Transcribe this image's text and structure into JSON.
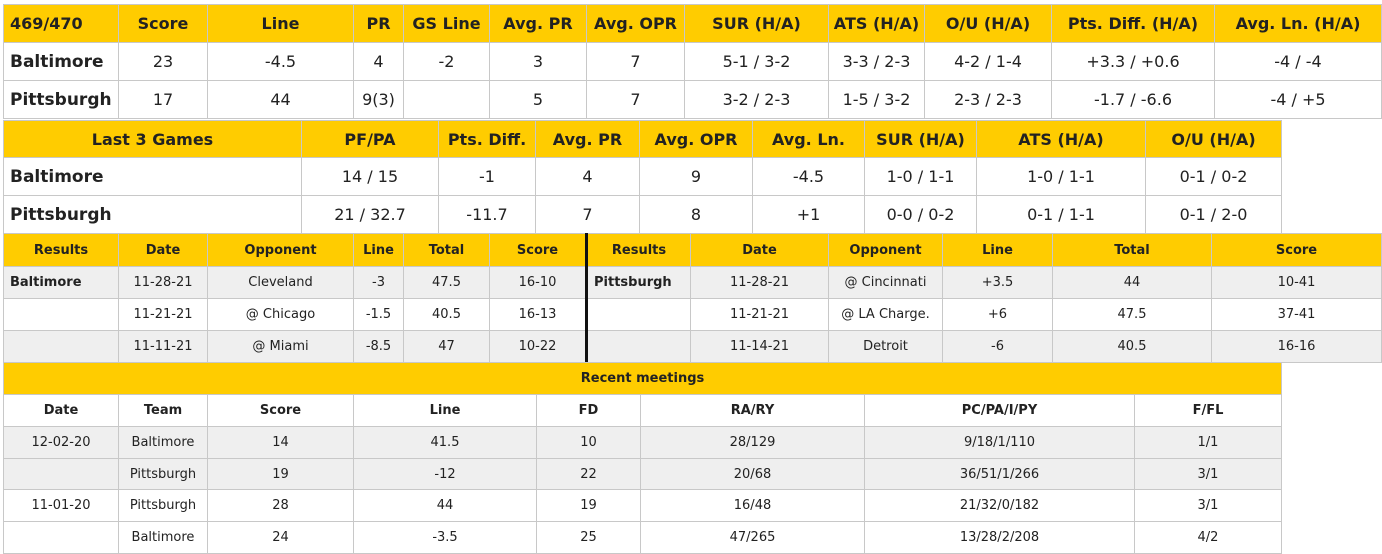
{
  "matchup": {
    "headers": [
      "469/470",
      "Score",
      "Line",
      "PR",
      "GS Line",
      "Avg. PR",
      "Avg. OPR",
      "SUR (H/A)",
      "ATS (H/A)",
      "O/U (H/A)",
      "Pts. Diff. (H/A)",
      "Avg. Ln. (H/A)"
    ],
    "rows": [
      [
        "Baltimore",
        "23",
        "-4.5",
        "4",
        "-2",
        "3",
        "7",
        "5-1 / 3-2",
        "3-3 / 2-3",
        "4-2 / 1-4",
        "+3.3 / +0.6",
        "-4 / -4"
      ],
      [
        "Pittsburgh",
        "17",
        "44",
        "9(3)",
        "",
        "5",
        "7",
        "3-2 / 2-3",
        "1-5 / 3-2",
        "2-3 / 2-3",
        "-1.7 / -6.6",
        "-4 / +5"
      ]
    ]
  },
  "last3": {
    "headers": [
      "Last 3 Games",
      "PF/PA",
      "Pts. Diff.",
      "Avg. PR",
      "Avg. OPR",
      "Avg. Ln.",
      "SUR (H/A)",
      "ATS (H/A)",
      "O/U (H/A)"
    ],
    "rows": [
      [
        "Baltimore",
        "14 / 15",
        "-1",
        "4",
        "9",
        "-4.5",
        "1-0 / 1-1",
        "1-0 / 1-1",
        "0-1 / 0-2"
      ],
      [
        "Pittsburgh",
        "21 / 32.7",
        "-11.7",
        "7",
        "8",
        "+1",
        "0-0 / 0-2",
        "0-1 / 1-1",
        "0-1 / 2-0"
      ]
    ]
  },
  "results": {
    "headers": [
      "Results",
      "Date",
      "Opponent",
      "Line",
      "Total",
      "Score",
      "Results",
      "Date",
      "Opponent",
      "Line",
      "Total",
      "Score"
    ],
    "rows": [
      [
        "Baltimore",
        "11-28-21",
        "Cleveland",
        "-3",
        "47.5",
        "16-10",
        "Pittsburgh",
        "11-28-21",
        "@ Cincinnati",
        "+3.5",
        "44",
        "10-41"
      ],
      [
        "",
        "11-21-21",
        "@ Chicago",
        "-1.5",
        "40.5",
        "16-13",
        "",
        "11-21-21",
        "@ LA Charge.",
        "+6",
        "47.5",
        "37-41"
      ],
      [
        "",
        "11-11-21",
        "@ Miami",
        "-8.5",
        "47",
        "10-22",
        "",
        "11-14-21",
        "Detroit",
        "-6",
        "40.5",
        "16-16"
      ]
    ]
  },
  "meetings": {
    "title": "Recent meetings",
    "headers": [
      "Date",
      "Team",
      "Score",
      "Line",
      "FD",
      "RA/RY",
      "PC/PA/I/PY",
      "F/FL"
    ],
    "rows": [
      [
        "12-02-20",
        "Baltimore",
        "14",
        "41.5",
        "10",
        "28/129",
        "9/18/1/110",
        "1/1"
      ],
      [
        "",
        "Pittsburgh",
        "19",
        "-12",
        "22",
        "20/68",
        "36/51/1/266",
        "3/1"
      ],
      [
        "11-01-20",
        "Pittsburgh",
        "28",
        "44",
        "19",
        "16/48",
        "21/32/0/182",
        "3/1"
      ],
      [
        "",
        "Baltimore",
        "24",
        "-3.5",
        "25",
        "47/265",
        "13/28/2/208",
        "4/2"
      ]
    ]
  },
  "colors": {
    "header_yellow": "#ffcc00",
    "row_gray": "#efefef",
    "row_white": "#ffffff"
  }
}
